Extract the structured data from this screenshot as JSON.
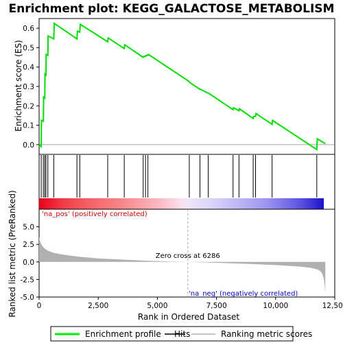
{
  "chart_data": [
    {
      "type": "line",
      "panel": "enrichment-profile",
      "title": "Enrichment plot: KEGG_GALACTOSE_METABOLISM",
      "ylabel": "Enrichment score (ES)",
      "ylim": [
        -0.05,
        0.65
      ],
      "xlim": [
        0,
        12500
      ],
      "yticks": [
        0.0,
        0.1,
        0.2,
        0.3,
        0.4,
        0.5,
        0.6
      ],
      "ytick_labels": [
        "0.0",
        "0.1",
        "0.2",
        "0.3",
        "0.4",
        "0.5",
        "0.6"
      ],
      "grid": false,
      "line_color": "#00cc00",
      "x": [
        0,
        90,
        100,
        180,
        190,
        240,
        250,
        290,
        300,
        370,
        380,
        620,
        640,
        1600,
        1620,
        1720,
        1740,
        2900,
        2920,
        3600,
        3620,
        4400,
        4420,
        4500,
        4520,
        4600,
        4620,
        6350,
        6370,
        6800,
        6820,
        7150,
        7170,
        8200,
        8220,
        8450,
        8470,
        9050,
        9070,
        9150,
        9170,
        9850,
        9870,
        11740,
        11760,
        12100
      ],
      "y": [
        0.0,
        -0.01,
        0.125,
        0.12,
        0.245,
        0.24,
        0.365,
        0.36,
        0.465,
        0.46,
        0.56,
        0.545,
        0.625,
        0.545,
        0.585,
        0.58,
        0.62,
        0.53,
        0.55,
        0.495,
        0.515,
        0.45,
        0.455,
        0.455,
        0.46,
        0.46,
        0.465,
        0.325,
        0.32,
        0.285,
        0.285,
        0.265,
        0.265,
        0.18,
        0.19,
        0.175,
        0.185,
        0.135,
        0.145,
        0.145,
        0.16,
        0.105,
        0.125,
        -0.025,
        0.03,
        0.005
      ]
    },
    {
      "type": "hits",
      "panel": "hit-ranks",
      "x": [
        90,
        180,
        240,
        290,
        370,
        620,
        1600,
        1720,
        2900,
        3600,
        4400,
        4500,
        4600,
        6350,
        6800,
        7150,
        8200,
        8450,
        9050,
        9150,
        9850,
        11740
      ]
    },
    {
      "type": "area",
      "panel": "ranked-list-metric",
      "ylabel": "Ranked list metric (PreRanked)",
      "xlabel": "Rank in Ordered Dataset",
      "ylim": [
        -5,
        7.5
      ],
      "xlim": [
        0,
        12500
      ],
      "yticks": [
        -5.0,
        -2.5,
        0.0,
        2.5,
        5.0
      ],
      "ytick_labels": [
        "-5.0",
        "-2.5",
        "0.0",
        "2.5",
        "5.0"
      ],
      "xticks": [
        0,
        2500,
        5000,
        7500,
        10000,
        12500
      ],
      "xtick_labels": [
        "0",
        "2,500",
        "5,000",
        "7,500",
        "10,000",
        "12,500"
      ],
      "x": [
        0,
        30,
        80,
        150,
        250,
        400,
        600,
        900,
        1300,
        1800,
        2500,
        3500,
        4500,
        5500,
        6286,
        7000,
        8000,
        9000,
        10000,
        11000,
        11500,
        11800,
        11950,
        12030,
        12080,
        12100
      ],
      "y": [
        3.6,
        3.0,
        2.6,
        2.2,
        1.85,
        1.55,
        1.3,
        1.1,
        0.9,
        0.7,
        0.5,
        0.33,
        0.18,
        0.07,
        0.0,
        -0.07,
        -0.18,
        -0.3,
        -0.45,
        -0.65,
        -0.85,
        -1.1,
        -1.5,
        -2.3,
        -3.5,
        -4.6
      ],
      "fill_color": "#b0b0b0",
      "zero_cross_label": "Zero cross at 6286",
      "zero_cross": 6286,
      "pos_label": "'na_pos' (positively correlated)",
      "neg_label": "'na_neg' (negatively correlated)",
      "pos_color": "#cc0000",
      "neg_color": "#0000cc"
    }
  ],
  "legend": {
    "placement": "bottom",
    "items": [
      {
        "label": "Enrichment profile",
        "color": "#00ee00"
      },
      {
        "label": "Hits",
        "color": "#000000"
      },
      {
        "label": "Ranking metric scores",
        "color": "#b0b0b0"
      }
    ]
  }
}
